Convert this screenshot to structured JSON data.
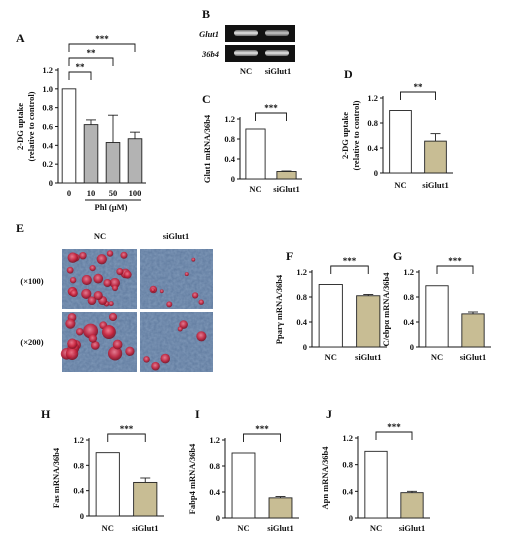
{
  "colors": {
    "control_bar": "#ffffff",
    "phl_bar": "#b3b3b3",
    "si_bar": "#c8bd94",
    "axis": "#111111"
  },
  "charts": [
    {
      "id": "A",
      "panel": "A",
      "type": "bar",
      "ylabel": "2-DG uptake\n(relative to control)",
      "xlabel": "Phl (μM)",
      "categories": [
        "0",
        "10",
        "50",
        "100"
      ],
      "values": [
        1.0,
        0.62,
        0.43,
        0.47
      ],
      "errors": [
        0.0,
        0.05,
        0.29,
        0.07
      ],
      "ylim": [
        0,
        1.2
      ],
      "yticks": [
        "0",
        "0.2",
        "0.4",
        "0.6",
        "0.8",
        "1.0",
        "1.2"
      ],
      "bar_colors": [
        "control_bar",
        "phl_bar",
        "phl_bar",
        "phl_bar"
      ],
      "sig": [
        {
          "from": 0,
          "to": 1,
          "label": "**"
        },
        {
          "from": 0,
          "to": 2,
          "label": "**"
        },
        {
          "from": 0,
          "to": 3,
          "label": "***"
        }
      ]
    },
    {
      "id": "C",
      "panel": "C",
      "type": "bar",
      "ylabel": "Glut1 mRNA/36b4",
      "categories": [
        "NC",
        "siGlut1"
      ],
      "values": [
        1.0,
        0.15
      ],
      "errors": [
        0.0,
        0.01
      ],
      "ylim": [
        0,
        1.2
      ],
      "yticks": [
        "0",
        "0.4",
        "0.8",
        "1.2"
      ],
      "bar_colors": [
        "control_bar",
        "si_bar"
      ],
      "sig": [
        {
          "from": 0,
          "to": 1,
          "label": "***"
        }
      ]
    },
    {
      "id": "D",
      "panel": "D",
      "type": "bar",
      "ylabel": "2-DG uptake\n(relative to control)",
      "categories": [
        "NC",
        "siGlut1"
      ],
      "values": [
        1.0,
        0.51
      ],
      "errors": [
        0.0,
        0.12
      ],
      "ylim": [
        0,
        1.2
      ],
      "yticks": [
        "0",
        "0.4",
        "0.8",
        "1.2"
      ],
      "bar_colors": [
        "control_bar",
        "si_bar"
      ],
      "sig": [
        {
          "from": 0,
          "to": 1,
          "label": "**"
        }
      ]
    },
    {
      "id": "F",
      "panel": "F",
      "type": "bar",
      "ylabel": "Pparγ mRNA/36b4",
      "categories": [
        "NC",
        "siGlut1"
      ],
      "values": [
        1.0,
        0.82
      ],
      "errors": [
        0.0,
        0.02
      ],
      "ylim": [
        0,
        1.2
      ],
      "yticks": [
        "0",
        "0.4",
        "0.8",
        "1.2"
      ],
      "bar_colors": [
        "control_bar",
        "si_bar"
      ],
      "sig": [
        {
          "from": 0,
          "to": 1,
          "label": "***"
        }
      ]
    },
    {
      "id": "G",
      "panel": "G",
      "type": "bar",
      "ylabel": "C/ebpα mRNA/36b4",
      "categories": [
        "NC",
        "siGlut1"
      ],
      "values": [
        0.98,
        0.53
      ],
      "errors": [
        0.0,
        0.03
      ],
      "ylim": [
        0,
        1.2
      ],
      "yticks": [
        "0",
        "0.4",
        "0.8",
        "1.2"
      ],
      "bar_colors": [
        "control_bar",
        "si_bar"
      ],
      "sig": [
        {
          "from": 0,
          "to": 1,
          "label": "***"
        }
      ]
    },
    {
      "id": "H",
      "panel": "H",
      "type": "bar",
      "ylabel": "Fas mRNA/36b4",
      "categories": [
        "NC",
        "siGlut1"
      ],
      "values": [
        1.0,
        0.53
      ],
      "errors": [
        0.0,
        0.07
      ],
      "ylim": [
        0,
        1.2
      ],
      "yticks": [
        "0",
        "0.4",
        "0.8",
        "1.2"
      ],
      "bar_colors": [
        "control_bar",
        "si_bar"
      ],
      "sig": [
        {
          "from": 0,
          "to": 1,
          "label": "***"
        }
      ]
    },
    {
      "id": "I",
      "panel": "I",
      "type": "bar",
      "ylabel": "Fabp4 mRNA/36b4",
      "categories": [
        "NC",
        "siGlut1"
      ],
      "values": [
        1.0,
        0.31
      ],
      "errors": [
        0.0,
        0.02
      ],
      "ylim": [
        0,
        1.2
      ],
      "yticks": [
        "0",
        "0.4",
        "0.8",
        "1.2"
      ],
      "bar_colors": [
        "control_bar",
        "si_bar"
      ],
      "sig": [
        {
          "from": 0,
          "to": 1,
          "label": "***"
        }
      ]
    },
    {
      "id": "J",
      "panel": "J",
      "type": "bar",
      "ylabel": "Apn mRNA/36b4",
      "categories": [
        "NC",
        "siGlut1"
      ],
      "values": [
        1.0,
        0.38
      ],
      "errors": [
        0.0,
        0.02
      ],
      "ylim": [
        0,
        1.2
      ],
      "yticks": [
        "0",
        "0.4",
        "0.8",
        "1.2"
      ],
      "bar_colors": [
        "control_bar",
        "si_bar"
      ],
      "sig": [
        {
          "from": 0,
          "to": 1,
          "label": "***"
        }
      ]
    }
  ],
  "gel": {
    "panel": "B",
    "rows": [
      "Glut1",
      "36b4"
    ],
    "lanes": [
      "NC",
      "siGlut1"
    ]
  },
  "micro": {
    "panel": "E",
    "columns": [
      "NC",
      "siGlut1"
    ],
    "rows": [
      "(×100)",
      "(×200)"
    ]
  }
}
